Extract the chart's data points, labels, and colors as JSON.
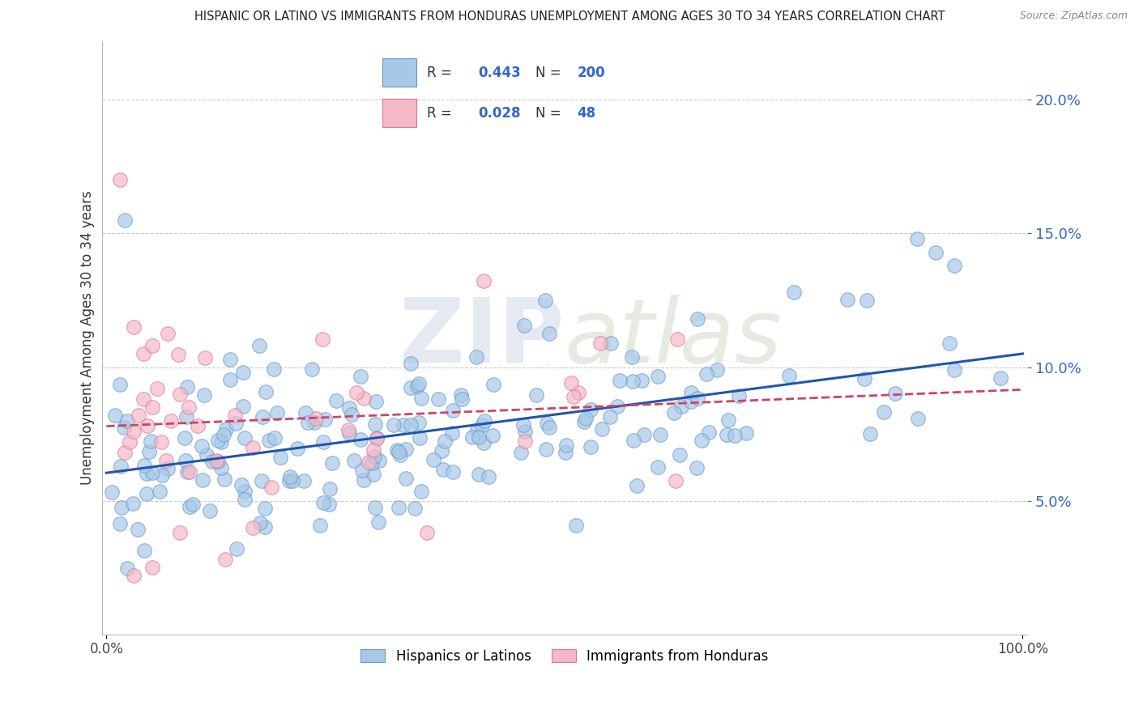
{
  "title": "HISPANIC OR LATINO VS IMMIGRANTS FROM HONDURAS UNEMPLOYMENT AMONG AGES 30 TO 34 YEARS CORRELATION CHART",
  "source": "Source: ZipAtlas.com",
  "ylabel": "Unemployment Among Ages 30 to 34 years",
  "watermark_zip": "ZIP",
  "watermark_atlas": "atlas",
  "scatter_blue_color": "#a8c8e8",
  "scatter_blue_edge": "#6699cc",
  "scatter_pink_color": "#f4b8c8",
  "scatter_pink_edge": "#dd7799",
  "line1_color": "#2255aa",
  "line2_color": "#cc4466",
  "line2_style": "dashed",
  "legend_numbers_color": "#3366cc",
  "legend_box_color": "#a8c8e8",
  "legend_box_pink": "#f4b8c8",
  "bg_color": "#ffffff",
  "grid_color": "#cccccc",
  "ytick_color": "#3366cc",
  "xtick_color": "#444444",
  "xlim": [
    0.0,
    1.0
  ],
  "ylim": [
    0.0,
    0.22
  ],
  "ytick_vals": [
    0.05,
    0.1,
    0.15,
    0.2
  ],
  "ytick_labels": [
    "5.0%",
    "10.0%",
    "15.0%",
    "20.0%"
  ]
}
